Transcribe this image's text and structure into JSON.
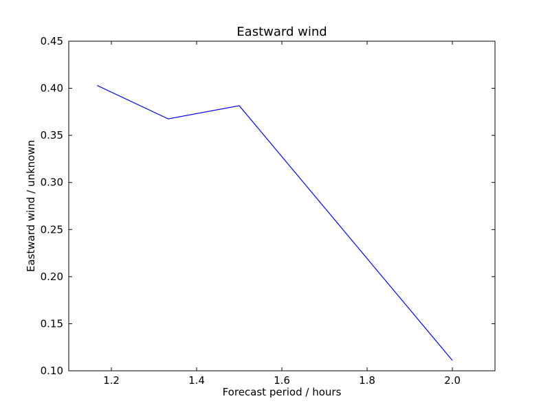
{
  "chart_data": {
    "type": "line",
    "title": "Eastward wind",
    "xlabel": "Forecast period / hours",
    "ylabel": "Eastward wind / unknown",
    "xlim": [
      1.1,
      2.1
    ],
    "ylim": [
      0.1,
      0.45
    ],
    "xticks": [
      "1.2",
      "1.4",
      "1.6",
      "1.8",
      "2.0"
    ],
    "yticks": [
      "0.10",
      "0.15",
      "0.20",
      "0.25",
      "0.30",
      "0.35",
      "0.40",
      "0.45"
    ],
    "grid": false,
    "series": [
      {
        "color": "#0000ff",
        "x": [
          1.1667,
          1.3333,
          1.5,
          2.0
        ],
        "y": [
          0.403,
          0.3675,
          0.3815,
          0.111
        ]
      }
    ]
  }
}
